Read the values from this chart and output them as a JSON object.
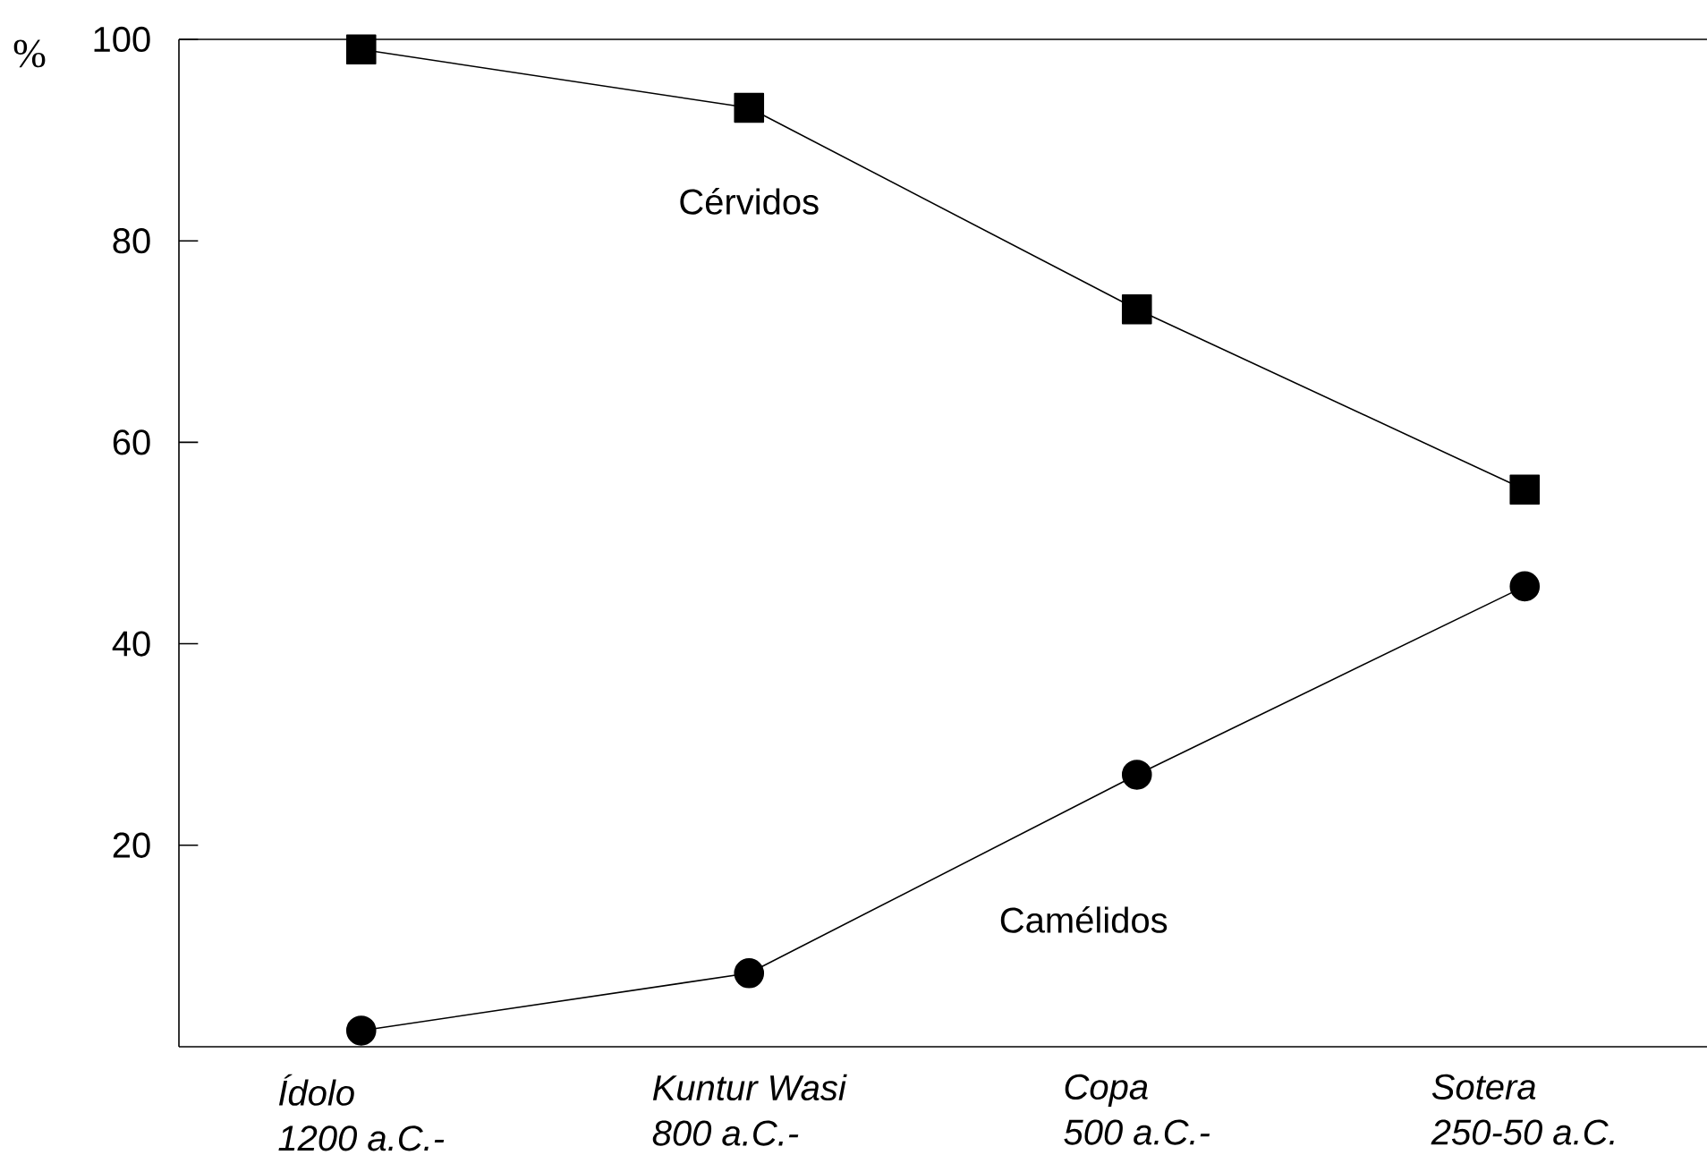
{
  "chart_data": {
    "type": "line",
    "ylabel": "%",
    "categories": [
      "Ídolo\n1200 a.C.-",
      "Kuntur Wasi\n800 a.C.-",
      "Copa\n500 a.C.-",
      "Sotera\n250-50 a.C."
    ],
    "series": [
      {
        "name": "Cérvidos",
        "color": "#000000",
        "marker": "square",
        "values": [
          99.0,
          93.2,
          73.2,
          55.3
        ]
      },
      {
        "name": "Camélidos",
        "color": "#000000",
        "marker": "circle",
        "values": [
          1.6,
          7.3,
          27.0,
          45.7
        ]
      }
    ],
    "ylim": [
      0,
      100
    ],
    "yticks": [
      20,
      40,
      60,
      80,
      100
    ],
    "grid": false,
    "line_style": "solid"
  }
}
